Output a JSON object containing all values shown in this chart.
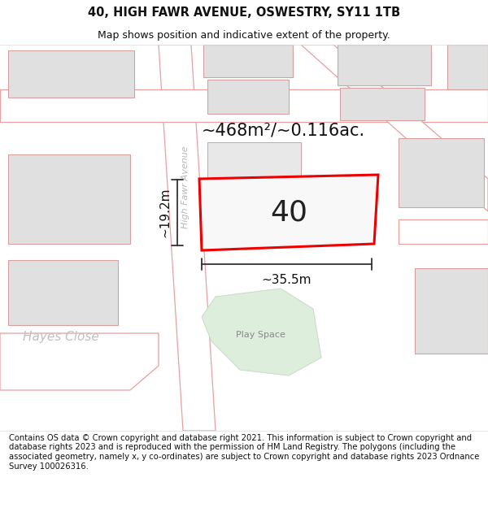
{
  "title_line1": "40, HIGH FAWR AVENUE, OSWESTRY, SY11 1TB",
  "title_line2": "Map shows position and indicative extent of the property.",
  "footer_text": "Contains OS data © Crown copyright and database right 2021. This information is subject to Crown copyright and database rights 2023 and is reproduced with the permission of HM Land Registry. The polygons (including the associated geometry, namely x, y co-ordinates) are subject to Crown copyright and database rights 2023 Ordnance Survey 100026316.",
  "area_label": "~468m²/~0.116ac.",
  "width_label": "~35.5m",
  "height_label": "~19.2m",
  "property_number": "40",
  "street_label": "High Fawr Avenue",
  "hayes_close_label": "Hayes Close",
  "play_space_label": "Play Space",
  "background_color": "#ffffff",
  "map_bg_color": "#f2f2f2",
  "road_fill_color": "#ffffff",
  "road_stroke_color": "#e8a0a0",
  "building_fill_color": "#e0e0e0",
  "building_stroke_color": "#d4a0a0",
  "property_fill_color": "#f8f8f8",
  "property_stroke_color": "#ee0000",
  "green_fill_color": "#ddeedd",
  "green_stroke_color": "#ccddcc",
  "dim_line_color": "#333333",
  "title_fontsize": 10.5,
  "subtitle_fontsize": 9,
  "footer_fontsize": 7.2,
  "area_fontsize": 15,
  "num_fontsize": 26,
  "dim_fontsize": 11,
  "street_fontsize": 8,
  "hayes_fontsize": 11,
  "play_fontsize": 8
}
